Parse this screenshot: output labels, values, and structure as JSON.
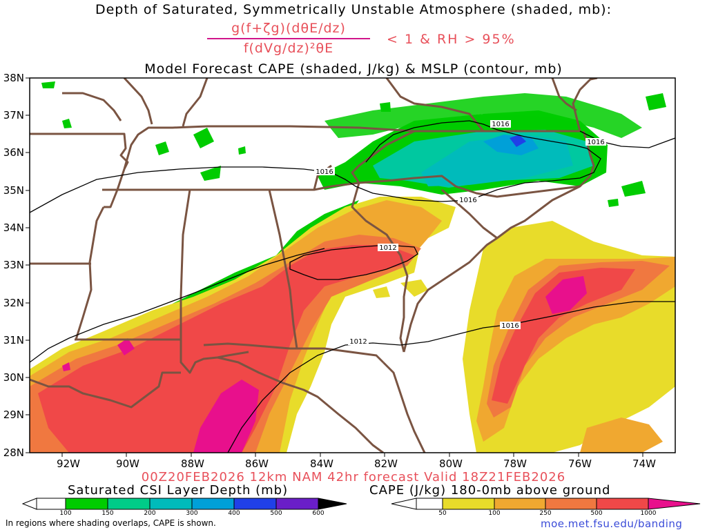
{
  "titles": {
    "line1": "Depth of Saturated, Symmetrically Unstable Atmosphere (shaded, mb):",
    "numerator": "g(f+ζg)(dθE/dz)",
    "denominator": "f(dVg/dz)²θE",
    "condition": "< 1 & RH > 95%",
    "line3": "Model Forecast CAPE (shaded, J/kg) & MSLP (contour, mb)",
    "valid": "00Z20FEB2026 12km NAM 42hr forecast Valid 18Z21FEB2026"
  },
  "axes": {
    "lat_labels": [
      "38N",
      "37N",
      "36N",
      "35N",
      "34N",
      "33N",
      "32N",
      "31N",
      "30N",
      "29N",
      "28N"
    ],
    "lon_labels": [
      "92W",
      "90W",
      "88W",
      "86W",
      "84W",
      "82W",
      "80W",
      "78W",
      "76W",
      "74W"
    ],
    "lat_range": [
      28,
      38
    ],
    "lon_range": [
      -93,
      -73
    ]
  },
  "isobars": {
    "labels": [
      "1016",
      "1016",
      "1016",
      "1016",
      "1016",
      "1012"
    ]
  },
  "legend": {
    "csi_label": "Saturated CSI Layer Depth (mb)",
    "csi_ticks": [
      "100",
      "150",
      "200",
      "300",
      "400",
      "500",
      "600"
    ],
    "csi_colors": [
      "#ffffff",
      "#00cc00",
      "#00cc88",
      "#00bbbb",
      "#00a0d8",
      "#2040e8",
      "#6a1ec8",
      "#000000"
    ],
    "cape_label": "CAPE (J/kg) 180-0mb above ground",
    "cape_ticks": [
      "50",
      "100",
      "250",
      "500",
      "1000"
    ],
    "cape_colors": [
      "#ffffff",
      "#e8dc2a",
      "#f0a830",
      "#f07840",
      "#f04848",
      "#e8108c"
    ]
  },
  "footer": {
    "note": "In regions where shading overlaps, CAPE is shown.",
    "url": "moe.met.fsu.edu/banding"
  },
  "colors": {
    "border": "#7a5442",
    "title_accent": "#e8505a"
  }
}
